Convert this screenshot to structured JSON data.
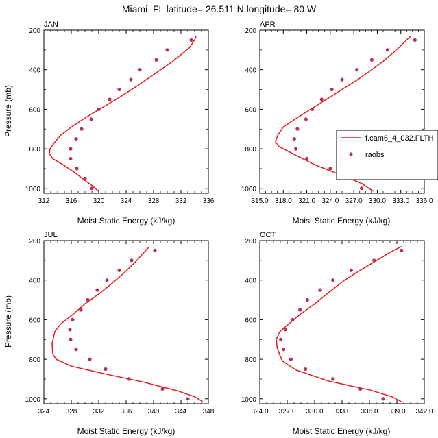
{
  "figure": {
    "title": "Miami_FL  latitude= 26.511 N longitude= 80 W",
    "colors": {
      "model": "#e41a1c",
      "obs": "#b5325a",
      "axis": "#000000"
    }
  },
  "legend": {
    "location": "right of APR panel",
    "entries": [
      {
        "label": "f.cam6_4_032.FLTH",
        "kind": "line"
      },
      {
        "label": "raobs",
        "kind": "marker"
      }
    ]
  },
  "chart_data": [
    {
      "id": "jan",
      "type": "line",
      "panel_label": "JAN",
      "title": "",
      "xlabel": "Moist Static Energy (kJ/kg)",
      "ylabel": "Pressure (mb)",
      "xlim": [
        312,
        336
      ],
      "ylim": [
        1025,
        200
      ],
      "xticks": [
        312,
        316,
        320,
        324,
        328,
        332,
        336
      ],
      "xtick_labels": [
        "312",
        "316",
        "320",
        "324",
        "328",
        "332",
        "336"
      ],
      "yticks": [
        200,
        400,
        600,
        800,
        1000
      ],
      "ytick_labels": [
        "200",
        "400",
        "600",
        "800",
        "1000"
      ],
      "series": [
        {
          "name": "f.cam6_4_032.FLTH",
          "kind": "line",
          "points": [
            [
              320.0,
              1015
            ],
            [
              319.0,
              985
            ],
            [
              317.8,
              955
            ],
            [
              316.5,
              920
            ],
            [
              314.8,
              880
            ],
            [
              313.3,
              850
            ],
            [
              312.8,
              825
            ],
            [
              312.9,
              800
            ],
            [
              313.5,
              770
            ],
            [
              314.5,
              730
            ],
            [
              316.0,
              690
            ],
            [
              318.2,
              640
            ],
            [
              320.6,
              590
            ],
            [
              323.0,
              540
            ],
            [
              325.7,
              480
            ],
            [
              328.2,
              420
            ],
            [
              330.7,
              360
            ],
            [
              333.2,
              290
            ],
            [
              334.0,
              250
            ],
            [
              334.2,
              230
            ]
          ]
        },
        {
          "name": "raobs",
          "kind": "scatter",
          "points": [
            [
              319.0,
              1000
            ],
            [
              318.0,
              950
            ],
            [
              316.8,
              900
            ],
            [
              315.9,
              850
            ],
            [
              315.9,
              800
            ],
            [
              316.7,
              750
            ],
            [
              317.5,
              700
            ],
            [
              318.9,
              650
            ],
            [
              320.0,
              600
            ],
            [
              321.6,
              550
            ],
            [
              323.0,
              500
            ],
            [
              324.7,
              450
            ],
            [
              326.0,
              400
            ],
            [
              328.4,
              350
            ],
            [
              330.0,
              300
            ],
            [
              333.5,
              250
            ]
          ]
        }
      ]
    },
    {
      "id": "apr",
      "type": "line",
      "panel_label": "APR",
      "title": "",
      "xlabel": "Moist Static Energy (kJ/kg)",
      "ylabel": "",
      "xlim": [
        315,
        336
      ],
      "ylim": [
        1025,
        200
      ],
      "xticks": [
        315,
        318,
        321,
        324,
        327,
        330,
        333,
        336
      ],
      "xtick_labels": [
        "315.0",
        "318.0",
        "321.0",
        "324.0",
        "327.0",
        "330.0",
        "333.0",
        "336.0"
      ],
      "yticks": [
        200,
        400,
        600,
        800,
        1000
      ],
      "ytick_labels": [
        "200",
        "400",
        "600",
        "800",
        "1000"
      ],
      "series": [
        {
          "name": "f.cam6_4_032.FLTH",
          "kind": "line",
          "points": [
            [
              329.5,
              1015
            ],
            [
              328.0,
              975
            ],
            [
              325.5,
              935
            ],
            [
              322.0,
              880
            ],
            [
              319.0,
              820
            ],
            [
              317.5,
              790
            ],
            [
              317.0,
              765
            ],
            [
              317.3,
              730
            ],
            [
              318.0,
              690
            ],
            [
              319.5,
              650
            ],
            [
              321.5,
              600
            ],
            [
              323.5,
              550
            ],
            [
              325.5,
              500
            ],
            [
              327.5,
              450
            ],
            [
              329.3,
              400
            ],
            [
              331.0,
              350
            ],
            [
              332.7,
              290
            ],
            [
              334.0,
              240
            ],
            [
              334.3,
              230
            ]
          ]
        },
        {
          "name": "raobs",
          "kind": "scatter",
          "points": [
            [
              328.0,
              1000
            ],
            [
              326.0,
              950
            ],
            [
              324.0,
              900
            ],
            [
              321.0,
              850
            ],
            [
              319.6,
              800
            ],
            [
              319.4,
              750
            ],
            [
              319.8,
              700
            ],
            [
              320.9,
              650
            ],
            [
              321.7,
              600
            ],
            [
              322.9,
              550
            ],
            [
              324.2,
              500
            ],
            [
              325.5,
              450
            ],
            [
              327.4,
              400
            ],
            [
              329.3,
              350
            ],
            [
              331.3,
              300
            ],
            [
              334.8,
              250
            ]
          ]
        }
      ]
    },
    {
      "id": "jul",
      "type": "line",
      "panel_label": "JUL",
      "title": "",
      "xlabel": "Moist Static Energy (kJ/kg)",
      "ylabel": "Pressure (mb)",
      "xlim": [
        324,
        348
      ],
      "ylim": [
        1025,
        200
      ],
      "xticks": [
        324,
        328,
        332,
        336,
        340,
        344,
        348
      ],
      "xtick_labels": [
        "324",
        "328",
        "332",
        "336",
        "340",
        "344",
        "348"
      ],
      "yticks": [
        200,
        400,
        600,
        800,
        1000
      ],
      "ytick_labels": [
        "200",
        "400",
        "600",
        "800",
        "1000"
      ],
      "series": [
        {
          "name": "f.cam6_4_032.FLTH",
          "kind": "line",
          "points": [
            [
              347.2,
              1015
            ],
            [
              346.0,
              990
            ],
            [
              343.5,
              960
            ],
            [
              338.5,
              915
            ],
            [
              333.0,
              875
            ],
            [
              328.0,
              835
            ],
            [
              325.8,
              800
            ],
            [
              325.3,
              775
            ],
            [
              325.2,
              720
            ],
            [
              325.6,
              660
            ],
            [
              326.5,
              620
            ],
            [
              328.0,
              580
            ],
            [
              330.0,
              520
            ],
            [
              332.0,
              470
            ],
            [
              333.8,
              420
            ],
            [
              335.5,
              370
            ],
            [
              337.3,
              310
            ],
            [
              338.6,
              260
            ],
            [
              339.4,
              230
            ]
          ]
        },
        {
          "name": "raobs",
          "kind": "scatter",
          "points": [
            [
              345.0,
              1000
            ],
            [
              341.3,
              950
            ],
            [
              336.4,
              900
            ],
            [
              333.0,
              850
            ],
            [
              330.7,
              800
            ],
            [
              328.7,
              750
            ],
            [
              327.9,
              700
            ],
            [
              327.8,
              650
            ],
            [
              328.2,
              600
            ],
            [
              329.4,
              550
            ],
            [
              330.4,
              500
            ],
            [
              331.8,
              450
            ],
            [
              333.2,
              400
            ],
            [
              335.0,
              350
            ],
            [
              336.8,
              300
            ],
            [
              340.2,
              250
            ]
          ]
        }
      ]
    },
    {
      "id": "oct",
      "type": "line",
      "panel_label": "OCT",
      "title": "",
      "xlabel": "Moist Static Energy (kJ/kg)",
      "ylabel": "",
      "xlim": [
        324,
        342
      ],
      "ylim": [
        1025,
        200
      ],
      "xticks": [
        324,
        327,
        330,
        333,
        336,
        339,
        342
      ],
      "xtick_labels": [
        "324.0",
        "327.0",
        "330.0",
        "333.0",
        "336.0",
        "339.0",
        "342.0"
      ],
      "yticks": [
        200,
        400,
        600,
        800,
        1000
      ],
      "ytick_labels": [
        "200",
        "400",
        "600",
        "800",
        "1000"
      ],
      "series": [
        {
          "name": "f.cam6_4_032.FLTH",
          "kind": "line",
          "points": [
            [
              339.5,
              1015
            ],
            [
              338.5,
              990
            ],
            [
              336.0,
              955
            ],
            [
              331.5,
              910
            ],
            [
              328.0,
              855
            ],
            [
              326.5,
              810
            ],
            [
              326.2,
              780
            ],
            [
              325.9,
              740
            ],
            [
              325.8,
              700
            ],
            [
              326.2,
              660
            ],
            [
              327.2,
              620
            ],
            [
              328.5,
              570
            ],
            [
              330.0,
              520
            ],
            [
              331.6,
              460
            ],
            [
              333.3,
              400
            ],
            [
              335.0,
              350
            ],
            [
              336.8,
              300
            ],
            [
              338.6,
              250
            ],
            [
              339.5,
              230
            ]
          ]
        },
        {
          "name": "raobs",
          "kind": "scatter",
          "points": [
            [
              337.5,
              1000
            ],
            [
              335.0,
              950
            ],
            [
              332.0,
              900
            ],
            [
              329.0,
              850
            ],
            [
              327.4,
              800
            ],
            [
              326.6,
              750
            ],
            [
              326.3,
              700
            ],
            [
              326.8,
              650
            ],
            [
              327.6,
              600
            ],
            [
              328.4,
              550
            ],
            [
              329.2,
              500
            ],
            [
              330.6,
              450
            ],
            [
              332.0,
              400
            ],
            [
              334.0,
              350
            ],
            [
              336.5,
              300
            ],
            [
              339.5,
              250
            ]
          ]
        }
      ]
    }
  ]
}
